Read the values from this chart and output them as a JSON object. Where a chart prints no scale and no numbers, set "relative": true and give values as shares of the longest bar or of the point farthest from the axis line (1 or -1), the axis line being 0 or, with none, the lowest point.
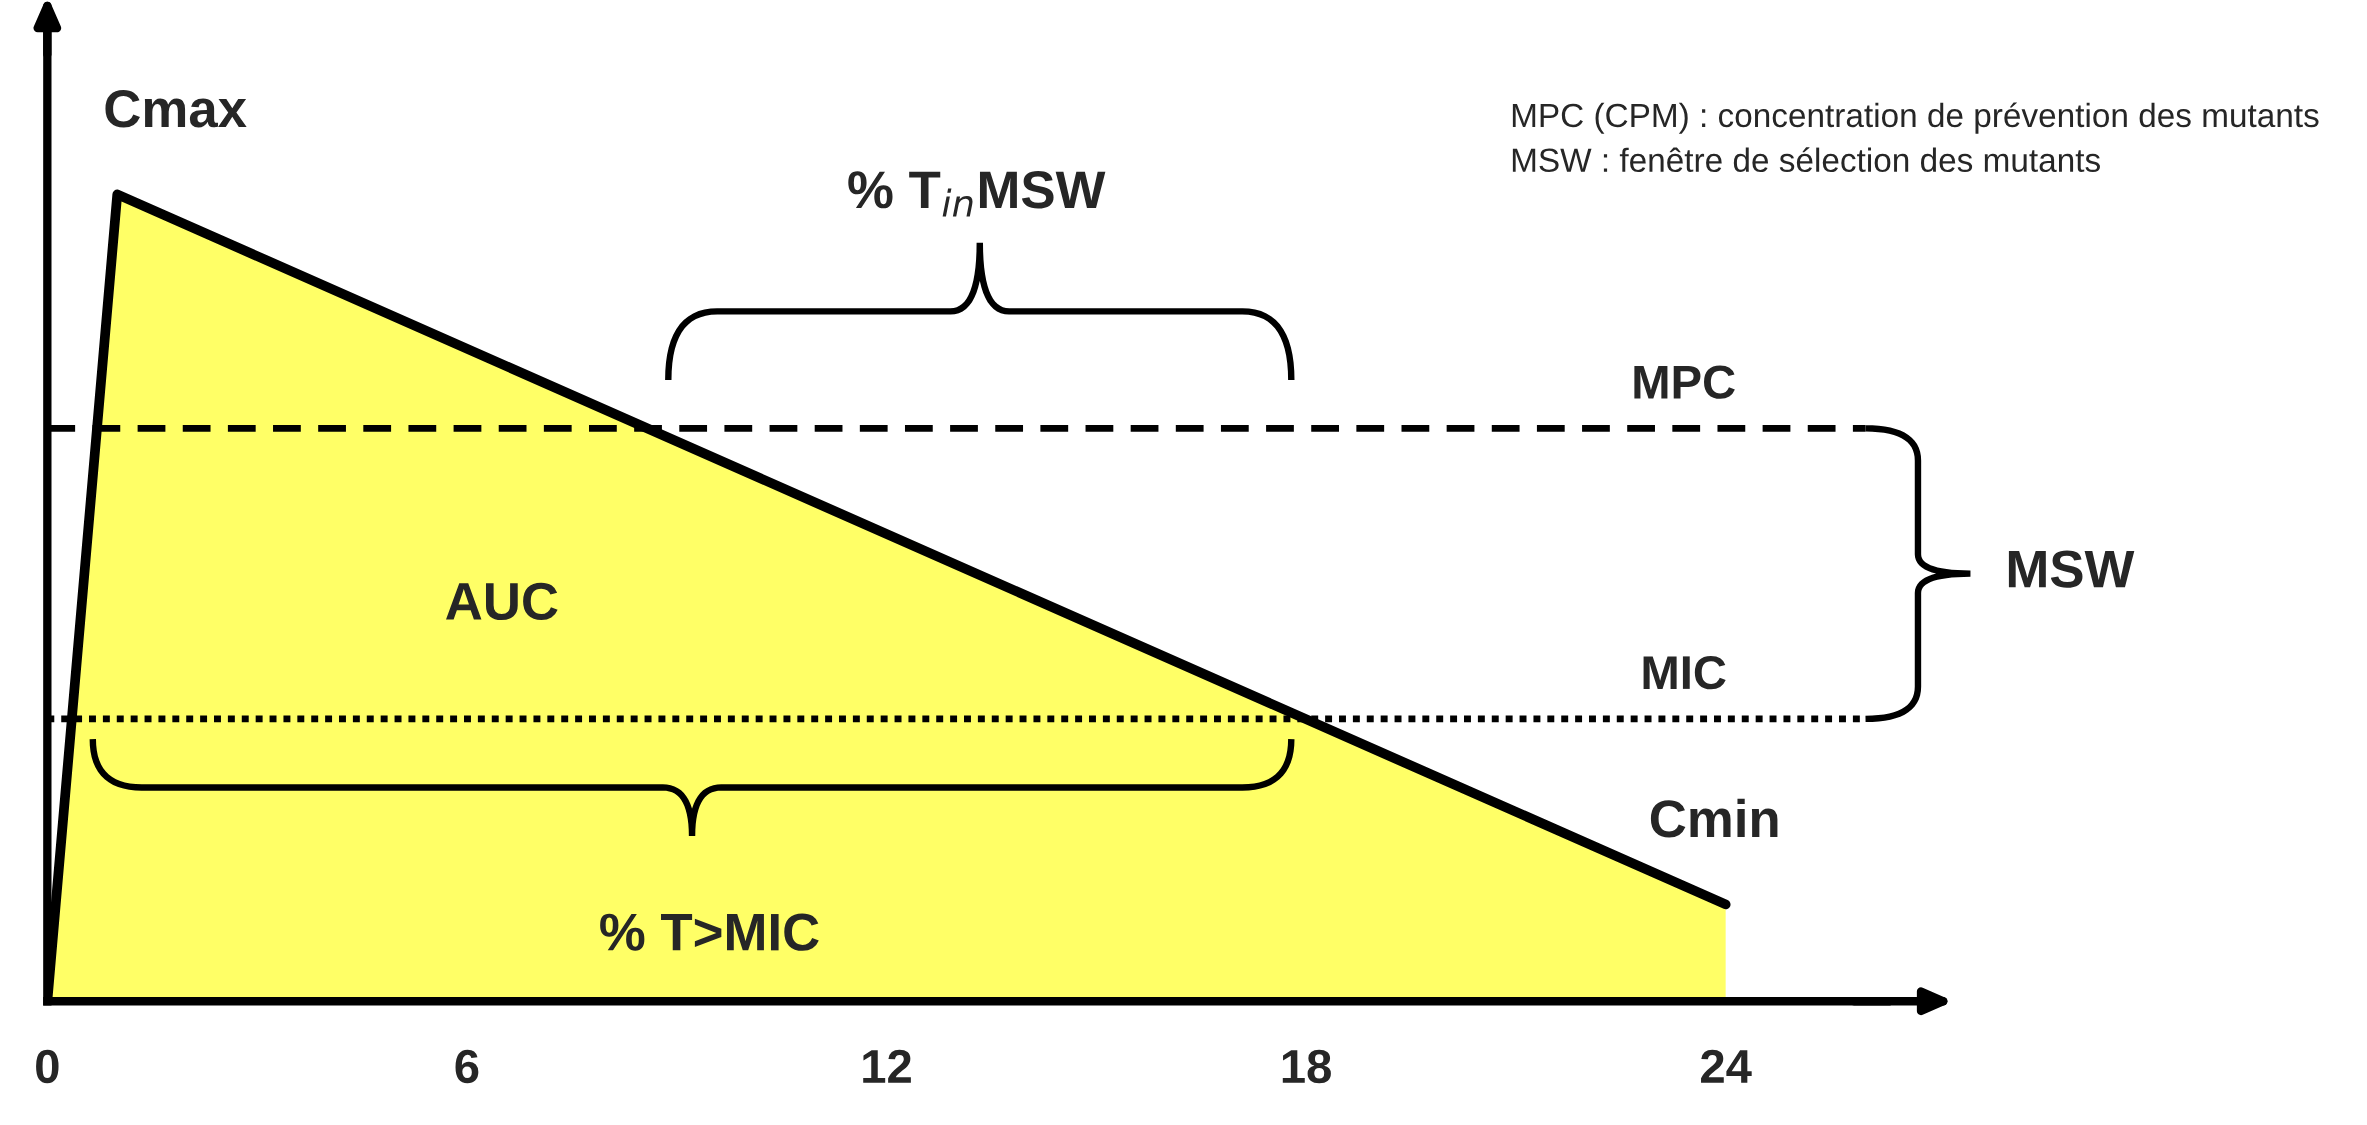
{
  "chart_data": {
    "type": "area",
    "relative": true,
    "x": [
      0,
      1,
      24
    ],
    "series": [
      {
        "color": "#ffff66",
        "values": [
          0,
          1,
          0.12
        ]
      }
    ],
    "xlim": [
      0,
      26.3
    ],
    "xticks": [
      0,
      6,
      12,
      18,
      24
    ],
    "tick_labels": "x",
    "grid": false,
    "line_style": "solid",
    "marker": "none",
    "ref_lines": [
      {
        "axis": "y",
        "value": 0.71,
        "label": "MPC",
        "line_style": "dashed",
        "color": "#000000"
      },
      {
        "axis": "y",
        "value": 0.35,
        "label": "MIC",
        "line_style": "dotted",
        "color": "#000000"
      }
    ],
    "annotations": [
      {
        "text": "Cmax",
        "x": 1,
        "y": 1
      },
      {
        "text": "Cmin",
        "x": 24,
        "y": 0.12
      },
      "AUC",
      "% T>MIC",
      "% T$_{in}$MSW",
      "MSW",
      "MPC (CPM) : concentration de prévention des mutants",
      "MSW : fenêtre de sélection des mutants"
    ]
  }
}
